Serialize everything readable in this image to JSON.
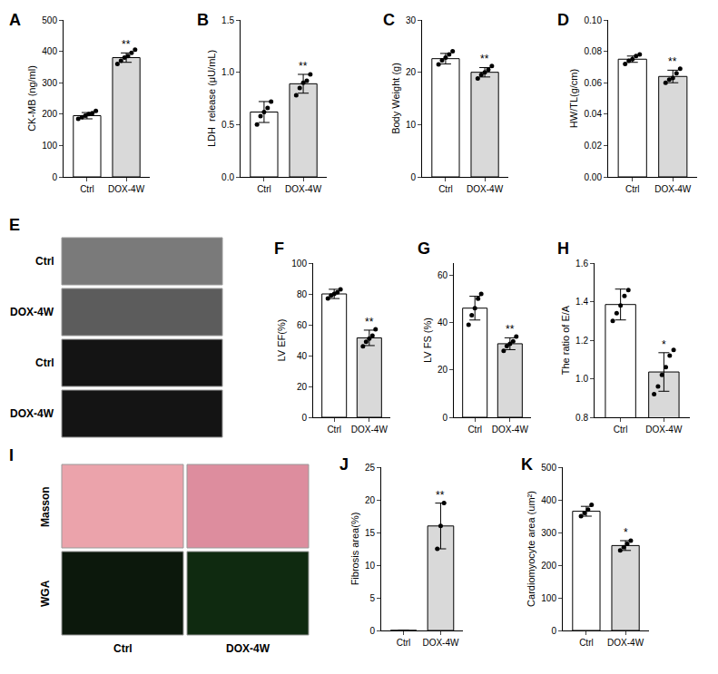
{
  "chart_data": [
    {
      "panel": "A",
      "type": "bar",
      "categories": [
        "Ctrl",
        "DOX-4W"
      ],
      "values": [
        195,
        380
      ],
      "error": [
        10,
        15
      ],
      "points": [
        [
          185,
          190,
          195,
          200,
          203,
          210
        ],
        [
          360,
          370,
          380,
          385,
          395,
          405
        ]
      ],
      "significance": [
        null,
        "**"
      ],
      "colors": [
        "#ffffff",
        "#d9d9d9"
      ],
      "y_label": "CK-MB (ng/ml)",
      "ylim": [
        0,
        500
      ],
      "yticks": [
        0,
        100,
        200,
        300,
        400,
        500
      ],
      "grid": false
    },
    {
      "panel": "B",
      "type": "bar",
      "categories": [
        "Ctrl",
        "DOX-4W"
      ],
      "values": [
        0.62,
        0.89
      ],
      "error": [
        0.1,
        0.09
      ],
      "points": [
        [
          0.5,
          0.58,
          0.62,
          0.66,
          0.72
        ],
        [
          0.78,
          0.85,
          0.9,
          0.92,
          0.98
        ]
      ],
      "significance": [
        null,
        "**"
      ],
      "colors": [
        "#ffffff",
        "#d9d9d9"
      ],
      "y_label": "LDH  release (μU/mL)",
      "ylim": [
        0,
        1.5
      ],
      "yticks": [
        {
          "value": 0,
          "label": "0.0"
        },
        {
          "value": 0.5,
          "label": "0.5"
        },
        {
          "value": 1,
          "label": "1.0"
        },
        {
          "value": 1.5,
          "label": "1.5"
        }
      ],
      "grid": false
    },
    {
      "panel": "C",
      "type": "bar",
      "categories": [
        "Ctrl",
        "DOX-4W"
      ],
      "values": [
        22.6,
        20.0
      ],
      "error": [
        1.0,
        0.9
      ],
      "points": [
        [
          21.5,
          22.3,
          22.8,
          23.4,
          24
        ],
        [
          18.8,
          19.5,
          20,
          20.5,
          21.2
        ]
      ],
      "significance": [
        null,
        "**"
      ],
      "colors": [
        "#ffffff",
        "#d9d9d9"
      ],
      "y_label": "Body Weight (g)",
      "ylim": [
        0,
        30
      ],
      "yticks": [
        0,
        10,
        20,
        30
      ],
      "grid": false
    },
    {
      "panel": "D",
      "type": "bar",
      "categories": [
        "Ctrl",
        "DOX-4W"
      ],
      "values": [
        0.075,
        0.064
      ],
      "error": [
        0.002,
        0.004
      ],
      "points": [
        [
          0.072,
          0.074,
          0.075,
          0.077,
          0.078
        ],
        [
          0.06,
          0.062,
          0.063,
          0.066,
          0.069
        ]
      ],
      "significance": [
        null,
        "**"
      ],
      "colors": [
        "#ffffff",
        "#d9d9d9"
      ],
      "y_label": "HW/TL(g/cm)",
      "ylim": [
        0,
        0.1
      ],
      "yticks": [
        {
          "value": 0,
          "label": "0.00"
        },
        {
          "value": 0.02,
          "label": "0.02"
        },
        {
          "value": 0.04,
          "label": "0.04"
        },
        {
          "value": 0.06,
          "label": "0.06"
        },
        {
          "value": 0.08,
          "label": "0.08"
        },
        {
          "value": 0.1,
          "label": "0.10"
        }
      ],
      "grid": false
    },
    {
      "panel": "F",
      "type": "bar",
      "categories": [
        "Ctrl",
        "DOX-4W"
      ],
      "values": [
        80,
        51.5
      ],
      "error": [
        3,
        5
      ],
      "points": [
        [
          77,
          79,
          80,
          81,
          83
        ],
        [
          46,
          49,
          51,
          53,
          57
        ]
      ],
      "significance": [
        null,
        "**"
      ],
      "colors": [
        "#ffffff",
        "#d9d9d9"
      ],
      "y_label": "LV EF(%)",
      "ylim": [
        0,
        100
      ],
      "yticks": [
        0,
        20,
        40,
        60,
        80,
        100
      ],
      "grid": false
    },
    {
      "panel": "G",
      "type": "bar",
      "categories": [
        "Ctrl",
        "DOX-4W"
      ],
      "values": [
        46,
        31
      ],
      "error": [
        5,
        2.5
      ],
      "points": [
        [
          39,
          43,
          46,
          50,
          52
        ],
        [
          28,
          30,
          31,
          32,
          34
        ]
      ],
      "significance": [
        null,
        "**"
      ],
      "colors": [
        "#ffffff",
        "#d9d9d9"
      ],
      "y_label": "LV FS (%)",
      "ylim": [
        0,
        65
      ],
      "yticks": [
        0,
        20,
        40,
        60
      ],
      "grid": false
    },
    {
      "panel": "H",
      "type": "bar",
      "categories": [
        "Ctrl",
        "DOX-4W"
      ],
      "values": [
        1.385,
        1.035
      ],
      "error": [
        0.08,
        0.1
      ],
      "points": [
        [
          1.3,
          1.34,
          1.38,
          1.43,
          1.46
        ],
        [
          0.92,
          0.96,
          1.02,
          1.06,
          1.12,
          1.15
        ]
      ],
      "significance": [
        null,
        "*"
      ],
      "colors": [
        "#ffffff",
        "#d9d9d9"
      ],
      "y_label": "The ratio of E/A",
      "ylim": [
        0.8,
        1.6
      ],
      "yticks": [
        {
          "value": 0.8,
          "label": "0.8"
        },
        {
          "value": 1,
          "label": "1.0"
        },
        {
          "value": 1.2,
          "label": "1.2"
        },
        {
          "value": 1.4,
          "label": "1.4"
        },
        {
          "value": 1.6,
          "label": "1.6"
        }
      ],
      "grid": false
    },
    {
      "panel": "J",
      "type": "bar",
      "categories": [
        "Ctrl",
        "DOX-4W"
      ],
      "values": [
        0,
        16
      ],
      "error": [
        0,
        3.5
      ],
      "points": [
        [],
        [
          12.5,
          16,
          19.5
        ]
      ],
      "significance": [
        null,
        "**"
      ],
      "colors": [
        "#ffffff",
        "#d9d9d9"
      ],
      "y_label": "Fibrosis area(%)",
      "ylim": [
        0,
        25
      ],
      "yticks": [
        0,
        5,
        10,
        15,
        20,
        25
      ],
      "grid": false
    },
    {
      "panel": "K",
      "type": "bar",
      "categories": [
        "Ctrl",
        "DOX-4W"
      ],
      "values": [
        365,
        260
      ],
      "error": [
        15,
        15
      ],
      "points": [
        [
          350,
          360,
          370,
          385
        ],
        [
          245,
          255,
          265,
          275
        ]
      ],
      "significance": [
        null,
        "*"
      ],
      "colors": [
        "#ffffff",
        "#d9d9d9"
      ],
      "y_label": "Cardiomyocyte area (um²)",
      "ylim": [
        0,
        500
      ],
      "yticks": [
        0,
        100,
        200,
        300,
        400,
        500
      ],
      "grid": false
    }
  ],
  "image_panels": [
    {
      "panel": "E",
      "rows": [
        "Ctrl",
        "DOX-4W",
        "Ctrl",
        "DOX-4W"
      ]
    },
    {
      "panel": "I",
      "rows": [
        "Masson",
        "WGA"
      ],
      "columns": [
        "Ctrl",
        "DOX-4W"
      ]
    }
  ]
}
